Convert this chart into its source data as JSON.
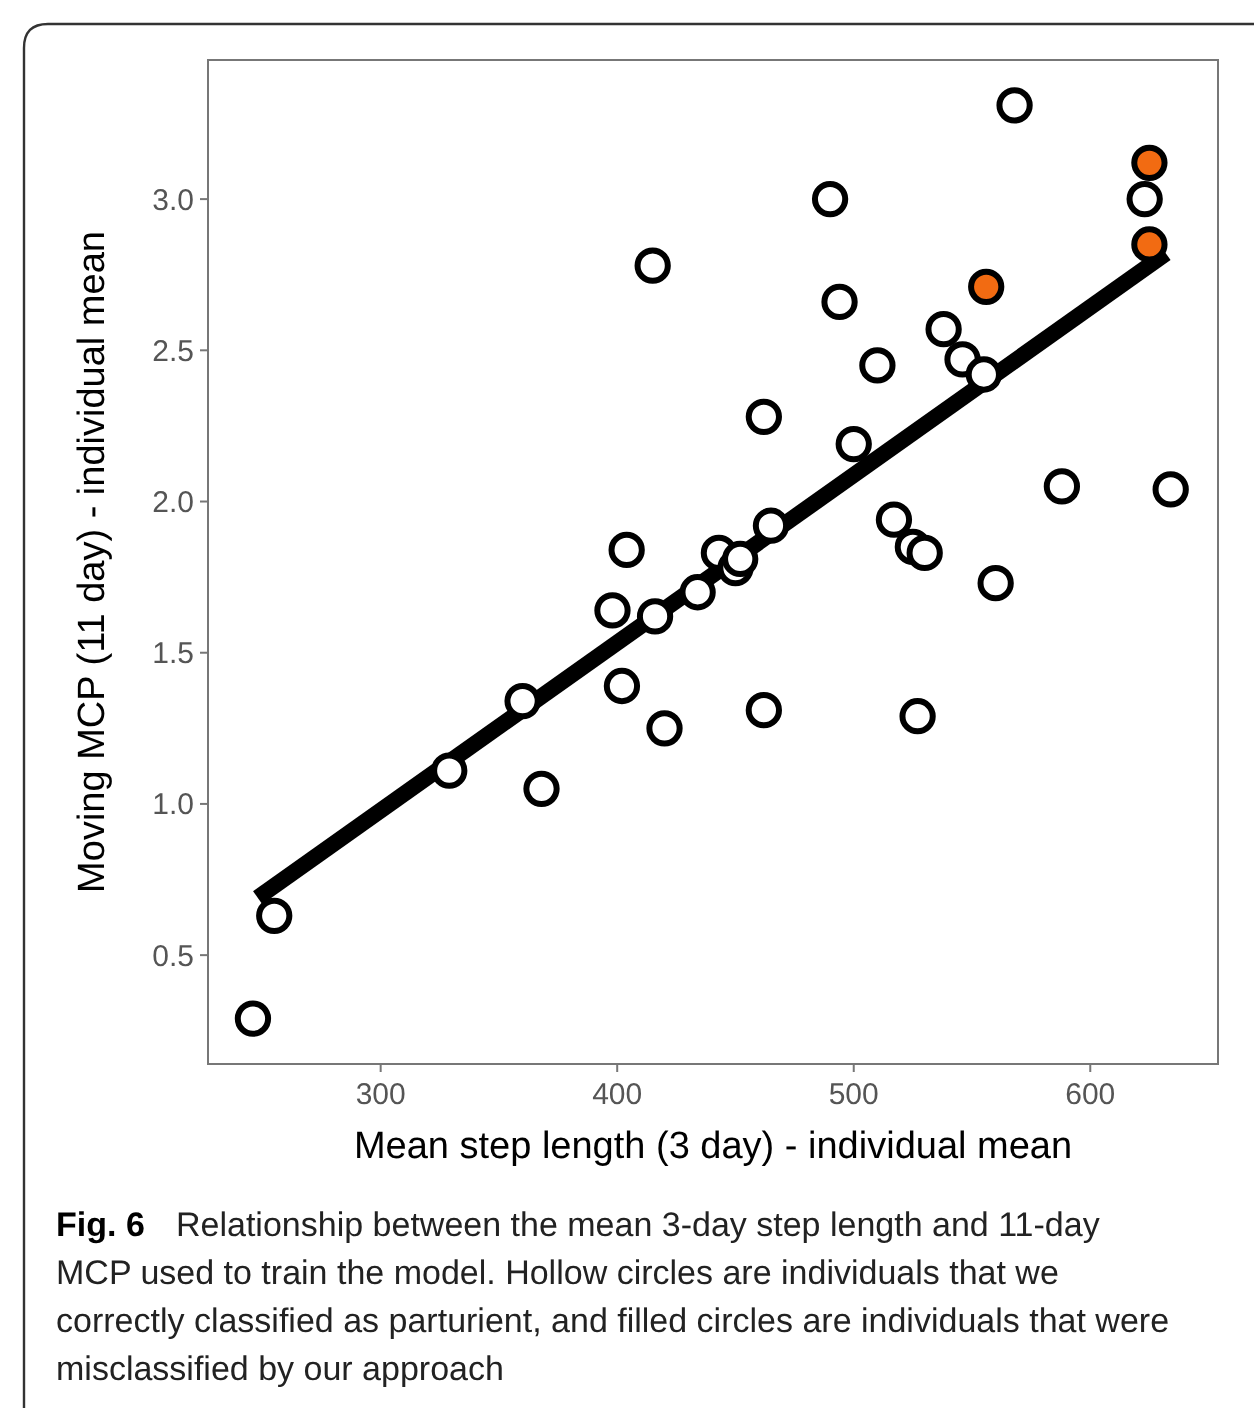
{
  "chart_data": {
    "type": "scatter",
    "xlabel": "Mean step length (3 day) - individual mean",
    "ylabel": "Moving MCP (11 day) - individual mean",
    "annotations": [
      "Fig. 6",
      "Relationship between the mean 3-day step length and 11-day MCP used to train the model. Hollow circles are individuals that we correctly classified as parturient, and filled circles are individuals that were misclassified by our approach"
    ],
    "xlim": [
      227,
      654
    ],
    "xticks": [
      300,
      400,
      500,
      600
    ],
    "ylim": [
      0.14,
      3.46
    ],
    "yticks": [
      {
        "value": 0.5,
        "label": "0.5"
      },
      {
        "value": 1,
        "label": "1.0"
      },
      {
        "value": 1.5,
        "label": "1.5"
      },
      {
        "value": 2,
        "label": "2.0"
      },
      {
        "value": 2.5,
        "label": "2.5"
      },
      {
        "value": 3,
        "label": "3.0"
      }
    ],
    "grid": false,
    "marker": "circle",
    "series": [
      {
        "type": "line",
        "marker": "none",
        "color": "#000000",
        "x": [
          248,
          632
        ],
        "values": [
          0.69,
          2.82
        ]
      },
      {
        "color": "#ffffff",
        "x": [
          246,
          255,
          329,
          360,
          368,
          398,
          402,
          404,
          415,
          416,
          420,
          434,
          443,
          450,
          452,
          462,
          462,
          465,
          490,
          494,
          500,
          510,
          517,
          525,
          527,
          530,
          538,
          546,
          555,
          560,
          568,
          588,
          623,
          634
        ],
        "values": [
          0.29,
          0.63,
          1.11,
          1.34,
          1.05,
          1.64,
          1.39,
          1.84,
          2.78,
          1.62,
          1.25,
          1.7,
          1.83,
          1.78,
          1.81,
          2.28,
          1.31,
          1.92,
          3.0,
          2.66,
          2.19,
          2.45,
          1.94,
          1.85,
          1.29,
          1.83,
          2.57,
          2.47,
          2.42,
          1.73,
          3.31,
          2.05,
          3.0,
          2.04
        ]
      },
      {
        "color": "#f26b12",
        "x": [
          556,
          625,
          625
        ],
        "values": [
          2.71,
          3.12,
          2.85
        ]
      }
    ]
  }
}
